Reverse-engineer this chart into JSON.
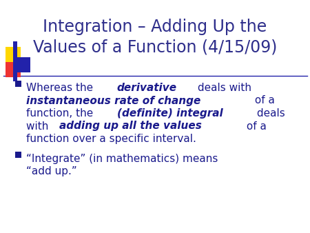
{
  "title_line1": "Integration – Adding Up the",
  "title_line2": "Values of a Function (4/15/09)",
  "title_color": "#2E2E8B",
  "background_color": "#FFFFFF",
  "bullet_color": "#1A1A8C",
  "bullet_square_color": "#1A1A8C",
  "deco_yellow": "#FFD700",
  "deco_red": "#EE3333",
  "deco_blue": "#2222AA",
  "title_fontsize": 17,
  "body_fontsize": 11,
  "line1": [
    {
      "text": "Whereas the ",
      "italic": false
    },
    {
      "text": "derivative",
      "italic": true
    },
    {
      "text": " deals with",
      "italic": false
    }
  ],
  "line2": [
    {
      "text": "instantaneous rate of change",
      "italic": true
    },
    {
      "text": " of a",
      "italic": false
    }
  ],
  "line3": [
    {
      "text": "function, the ",
      "italic": false
    },
    {
      "text": "(definite) integral",
      "italic": true
    },
    {
      "text": " deals",
      "italic": false
    }
  ],
  "line4": [
    {
      "text": "with ",
      "italic": false
    },
    {
      "text": "adding up all the values",
      "italic": true
    },
    {
      "text": " of a",
      "italic": false
    }
  ],
  "line5": [
    {
      "text": "function over a specific interval.",
      "italic": false
    }
  ],
  "line6": [
    {
      "text": "“Integrate” (in mathematics) means",
      "italic": false
    }
  ],
  "line7": [
    {
      "text": "“add up.”",
      "italic": false
    }
  ]
}
